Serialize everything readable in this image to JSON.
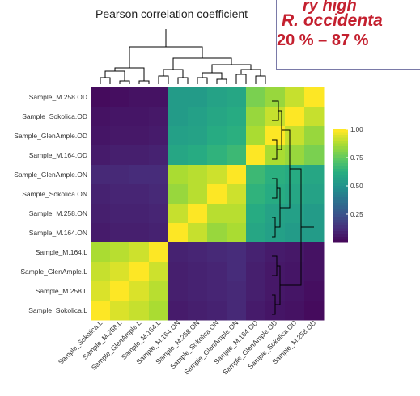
{
  "callout": {
    "line1": "ry high",
    "line2": "R. occidenta",
    "line3": "20 % – 87 %"
  },
  "colors": {
    "callout_text": "#c4202f",
    "callout_border": "#7a7aa8",
    "colormap": "viridis"
  },
  "chart_data": {
    "type": "heatmap",
    "title": "Pearson correlation coefficient",
    "rows": [
      "Sample_M.258.OD",
      "Sample_Sokolica.OD",
      "Sample_GlenAmple.OD",
      "Sample_M.164.OD",
      "Sample_GlenAmple.ON",
      "Sample_Sokolica.ON",
      "Sample_M.258.ON",
      "Sample_M.164.ON",
      "Sample_M.164.L",
      "Sample_GlenAmple.L",
      "Sample_M.258.L",
      "Sample_Sokolica.L"
    ],
    "columns": [
      "Sample_Sokolica.L",
      "Sample_M.258.L",
      "Sample_GlenAmple.L",
      "Sample_M.164.L",
      "Sample_M.164.ON",
      "Sample_M.258.ON",
      "Sample_Sokolica.ON",
      "Sample_GlenAmple.ON",
      "Sample_M.164.OD",
      "Sample_GlenAmple.OD",
      "Sample_Sokolica.OD",
      "Sample_M.258.OD"
    ],
    "values": [
      [
        0.03,
        0.04,
        0.05,
        0.05,
        0.55,
        0.55,
        0.58,
        0.6,
        0.8,
        0.85,
        0.92,
        1.0
      ],
      [
        0.05,
        0.06,
        0.06,
        0.07,
        0.55,
        0.57,
        0.6,
        0.62,
        0.85,
        0.92,
        1.0,
        0.92
      ],
      [
        0.06,
        0.07,
        0.07,
        0.08,
        0.57,
        0.58,
        0.62,
        0.64,
        0.88,
        1.0,
        0.92,
        0.85
      ],
      [
        0.08,
        0.09,
        0.09,
        0.1,
        0.6,
        0.62,
        0.65,
        0.68,
        1.0,
        0.88,
        0.85,
        0.8
      ],
      [
        0.12,
        0.12,
        0.13,
        0.13,
        0.88,
        0.9,
        0.93,
        1.0,
        0.68,
        0.64,
        0.62,
        0.6
      ],
      [
        0.1,
        0.11,
        0.11,
        0.12,
        0.85,
        0.9,
        1.0,
        0.93,
        0.65,
        0.62,
        0.6,
        0.58
      ],
      [
        0.09,
        0.1,
        0.1,
        0.11,
        0.92,
        1.0,
        0.9,
        0.9,
        0.62,
        0.58,
        0.57,
        0.55
      ],
      [
        0.08,
        0.09,
        0.09,
        0.1,
        1.0,
        0.92,
        0.85,
        0.88,
        0.6,
        0.57,
        0.55,
        0.55
      ],
      [
        0.88,
        0.9,
        0.93,
        1.0,
        0.1,
        0.11,
        0.12,
        0.13,
        0.1,
        0.08,
        0.07,
        0.05
      ],
      [
        0.92,
        0.95,
        1.0,
        0.93,
        0.09,
        0.1,
        0.11,
        0.13,
        0.09,
        0.07,
        0.06,
        0.05
      ],
      [
        0.95,
        1.0,
        0.95,
        0.9,
        0.09,
        0.1,
        0.11,
        0.12,
        0.09,
        0.07,
        0.06,
        0.04
      ],
      [
        1.0,
        0.95,
        0.92,
        0.88,
        0.08,
        0.09,
        0.1,
        0.12,
        0.08,
        0.06,
        0.05,
        0.03
      ]
    ],
    "colorbar": {
      "range": [
        0.0,
        1.0
      ],
      "ticks": [
        "1.00",
        "0.75",
        "0.50",
        "0.25"
      ],
      "tick_values": [
        1.0,
        0.75,
        0.5,
        0.25
      ]
    },
    "dendrogram": "clustered rows and columns: L group vs (ON, OD) groups"
  }
}
